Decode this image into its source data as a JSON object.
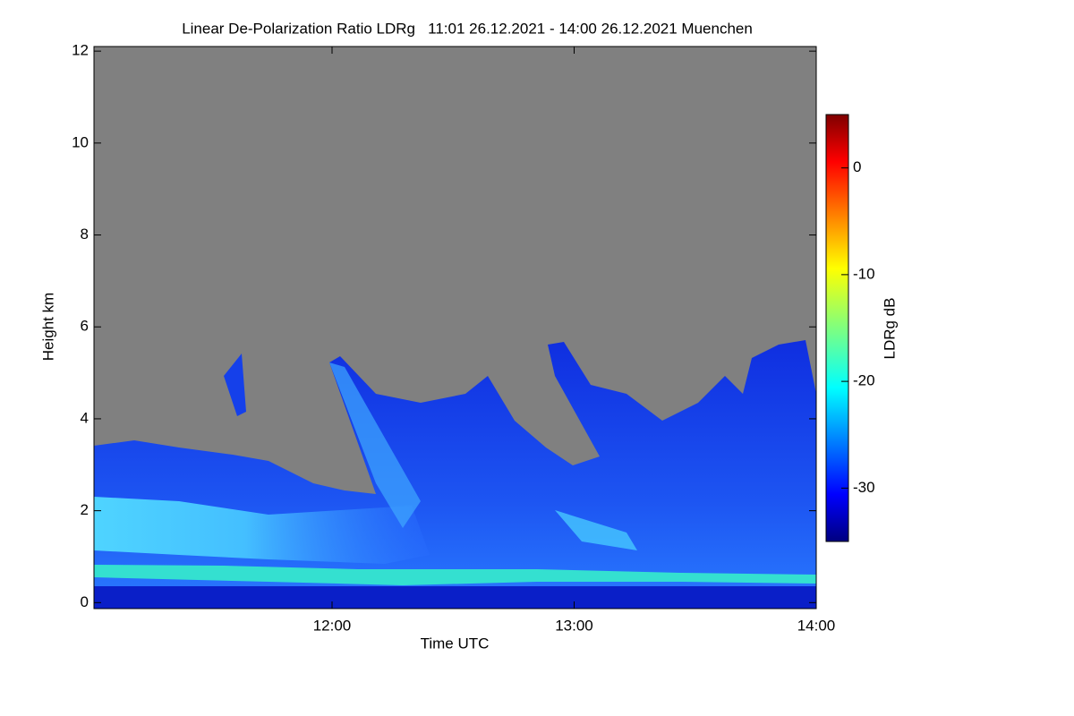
{
  "chart_data": {
    "type": "heatmap",
    "title": "Linear De-Polarization Ratio LDRg   11:01 26.12.2021 - 14:00 26.12.2021 Muenchen",
    "x_label": "Time UTC",
    "y_label": "Height km",
    "colorbar_label": "LDRg dB",
    "xlim": [
      11.0167,
      14
    ],
    "xticks": [
      {
        "value": 12,
        "label": "12:00"
      },
      {
        "value": 13,
        "label": "13:00"
      },
      {
        "value": 14,
        "label": "14:00"
      }
    ],
    "ylim": [
      -0.13,
      12.1
    ],
    "yticks": [
      0,
      2,
      4,
      6,
      8,
      10,
      12
    ],
    "clim": [
      -35,
      5
    ],
    "cticks": [
      0,
      -10,
      -20,
      -30
    ],
    "colormap": "jet",
    "missing_color": "#808080"
  }
}
